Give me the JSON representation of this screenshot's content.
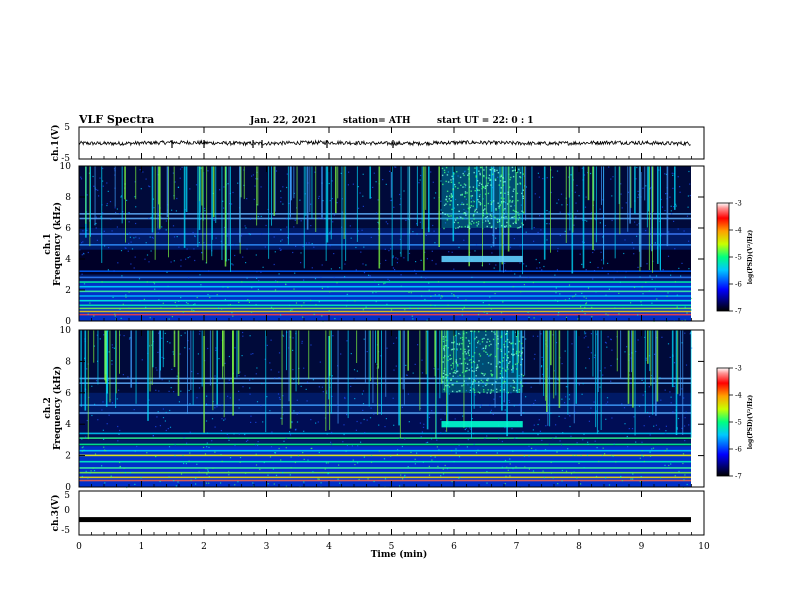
{
  "header": {
    "title": "VLF Spectra",
    "date": "Jan. 22, 2021",
    "station": "station= ATH",
    "start": "start  UT =   22: 0  : 1"
  },
  "chart_data": [
    {
      "type": "line",
      "name": "ch1-waveform",
      "ylabel": "ch.1(V)",
      "ylim": [
        -5,
        5
      ],
      "y_ticks": [
        "5",
        "-5"
      ],
      "xlim": [
        0,
        10
      ],
      "x_units": "min",
      "mean_value": 0,
      "approx_amplitude": 0.6
    },
    {
      "type": "heatmap",
      "name": "ch1-spectrogram",
      "ylabel": "ch.1\nFrequency (kHz)",
      "ylim": [
        0,
        10
      ],
      "y_ticks": [
        "0",
        "2",
        "4",
        "6",
        "8",
        "10"
      ],
      "xlim": [
        0,
        10
      ],
      "x_units": "min",
      "colorbar": {
        "label": "log(PSD)(V²/Hz)",
        "range": [
          -7,
          -3
        ],
        "ticks": [
          "-3",
          "-4",
          "-5",
          "-6",
          "-7"
        ]
      }
    },
    {
      "type": "heatmap",
      "name": "ch2-spectrogram",
      "ylabel": "ch.2\nFrequency (kHz)",
      "ylim": [
        0,
        10
      ],
      "y_ticks": [
        "0",
        "2",
        "4",
        "6",
        "8",
        "10"
      ],
      "xlim": [
        0,
        10
      ],
      "x_units": "min",
      "colorbar": {
        "label": "log(PSD)(V²/Hz)",
        "range": [
          -7,
          -3
        ],
        "ticks": [
          "-3",
          "-4",
          "-5",
          "-6",
          "-7"
        ]
      }
    },
    {
      "type": "line",
      "name": "ch3-waveform",
      "ylabel": "ch.3(V)",
      "ylim": [
        -5,
        5
      ],
      "y_ticks": [
        "5",
        "0",
        "-5"
      ],
      "xlim": [
        0,
        10
      ],
      "x_units": "min",
      "mean_value": -1.5
    }
  ],
  "x_axis": {
    "label": "Time (min)",
    "ticks": [
      "0",
      "1",
      "2",
      "3",
      "4",
      "5",
      "6",
      "7",
      "8",
      "9",
      "10"
    ]
  },
  "colors": {
    "background": "#ffffff",
    "axis": "#000000"
  }
}
